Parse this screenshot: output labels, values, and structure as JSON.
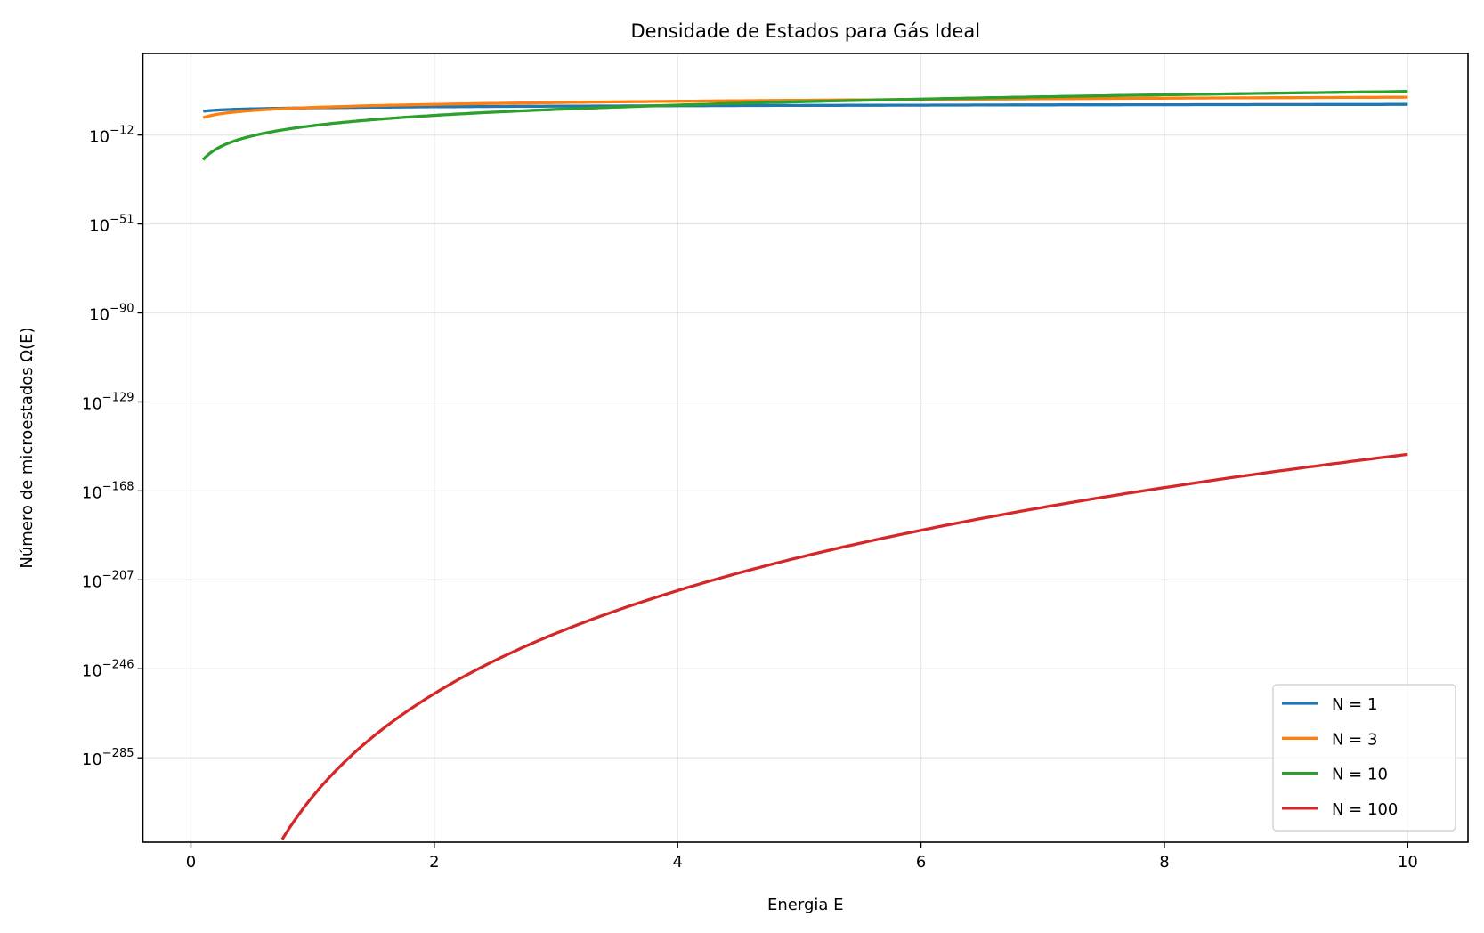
{
  "chart_data": {
    "type": "line",
    "title": "Densidade de Estados para Gás Ideal",
    "xlabel": "Energia E",
    "ylabel": "Número de microestados Ω(E)",
    "xscale": "linear",
    "yscale": "log",
    "xlim": [
      -0.395,
      10.495
    ],
    "ylim": [
      1e-322,
      6e+23
    ],
    "grid": true,
    "legend_position": "lower-right",
    "xticks": [
      0,
      2,
      4,
      6,
      8,
      10
    ],
    "xtick_labels": [
      "0",
      "2",
      "4",
      "6",
      "8",
      "10"
    ],
    "yticks": [
      1e-12,
      1e-51,
      1e-90,
      1e-129,
      1e-168,
      1e-207,
      1e-246,
      1e-285
    ],
    "ytick_labels": [
      {
        "base": "10",
        "exp": "−12"
      },
      {
        "base": "10",
        "exp": "−51"
      },
      {
        "base": "10",
        "exp": "−90"
      },
      {
        "base": "10",
        "exp": "−129"
      },
      {
        "base": "10",
        "exp": "−168"
      },
      {
        "base": "10",
        "exp": "−207"
      },
      {
        "base": "10",
        "exp": "−246"
      },
      {
        "base": "10",
        "exp": "−285"
      }
    ],
    "series": [
      {
        "name": "N = 1",
        "color": "#1f77b4",
        "x": [
          0.1,
          0.2,
          0.3,
          0.5,
          0.75,
          1,
          1.5,
          2,
          3,
          4,
          5,
          6,
          7,
          8,
          9,
          10
        ],
        "y": [
          0.028,
          0.079,
          0.15,
          0.32,
          0.58,
          0.89,
          1.6,
          2.5,
          4.7,
          7.1,
          10,
          13,
          17,
          20,
          24,
          28
        ]
      },
      {
        "name": "N = 3",
        "color": "#ff7f0e",
        "x": [
          0.1,
          0.2,
          0.3,
          0.5,
          0.75,
          1,
          1.5,
          2,
          3,
          4,
          5,
          6,
          7,
          8,
          9,
          10
        ],
        "y": [
          4e-05,
          0.00089,
          0.0056,
          0.056,
          0.35,
          1.26,
          7.8,
          28,
          180,
          650,
          1780,
          4000,
          7900,
          14500,
          24500,
          39800
        ]
      },
      {
        "name": "N = 10",
        "color": "#2ca02c",
        "x": [
          0.1,
          0.2,
          0.3,
          0.5,
          0.75,
          1,
          1.5,
          2,
          3,
          4,
          5,
          6,
          7,
          8,
          9,
          10
        ],
        "y": [
          1.3e-23,
          4.1e-19,
          1.8e-16,
          3.8e-13,
          1.7e-10,
          1.3e-08,
          5.5e-06,
          0.00042,
          0.18,
          13.5,
          389,
          5900,
          60000,
          447000,
          2600000.0,
          12600000.0
        ]
      },
      {
        "name": "N = 100",
        "color": "#d62728",
        "x": [
          0.75,
          1,
          1.5,
          2,
          3,
          4,
          5,
          6,
          7,
          8,
          9,
          10
        ],
        "y": [
          1.8e-321,
          1e-302,
          2.5e-276,
          1.4e-257,
          3.7e-231,
          2e-212,
          7.1e-198,
          5.2e-186,
          5.7e-176,
          2.9e-167,
          1.4e-159,
          1e-152
        ]
      }
    ]
  }
}
